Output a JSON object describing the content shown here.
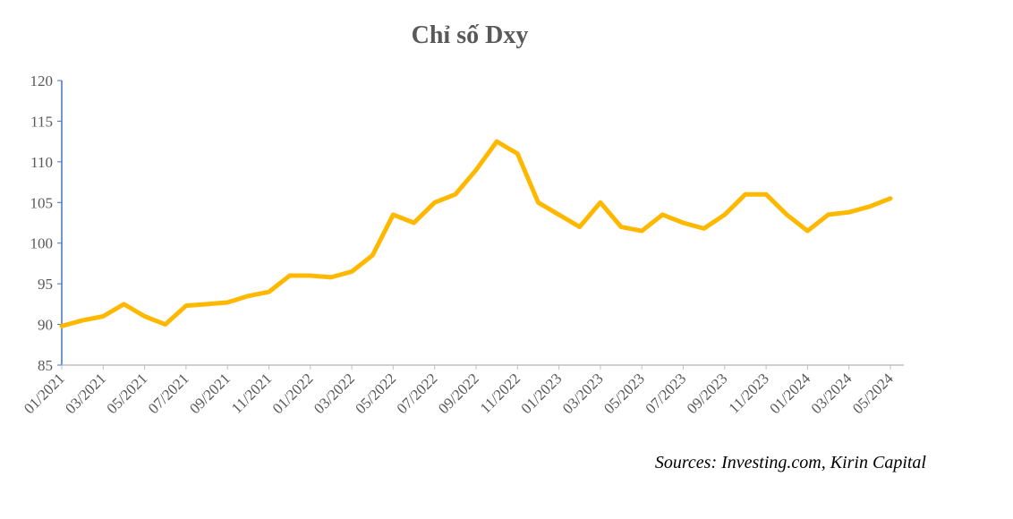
{
  "chart_data": {
    "type": "line",
    "title": "Chỉ số Dxy",
    "source": "Sources: Investing.com, Kirin Capital",
    "categories": [
      "01/2021",
      null,
      "03/2021",
      null,
      "05/2021",
      null,
      "07/2021",
      null,
      "09/2021",
      null,
      "11/2021",
      null,
      "01/2022",
      null,
      "03/2022",
      null,
      "05/2022",
      null,
      "07/2022",
      null,
      "09/2022",
      null,
      "11/2022",
      null,
      "01/2023",
      null,
      "03/2023",
      null,
      "05/2023",
      null,
      "07/2023",
      null,
      "09/2023",
      null,
      "11/2023",
      null,
      "01/2024",
      null,
      "03/2024",
      null,
      "05/2024"
    ],
    "series": [
      {
        "name": "DXY",
        "color": "#ffb800",
        "values": [
          89.8,
          90.5,
          91.0,
          92.5,
          91.0,
          90.0,
          92.3,
          92.5,
          92.7,
          93.5,
          94.0,
          96.0,
          96.0,
          95.8,
          96.5,
          98.5,
          103.5,
          102.5,
          105.0,
          106.0,
          109.0,
          112.5,
          111.0,
          105.0,
          103.5,
          102.0,
          105.0,
          102.0,
          101.5,
          103.5,
          102.5,
          101.8,
          103.5,
          106.0,
          106.0,
          103.5,
          101.5,
          103.5,
          103.8,
          104.5,
          105.5
        ]
      }
    ],
    "ylim": [
      85,
      120
    ],
    "yticks": [
      85,
      90,
      95,
      100,
      105,
      110,
      115,
      120
    ]
  }
}
